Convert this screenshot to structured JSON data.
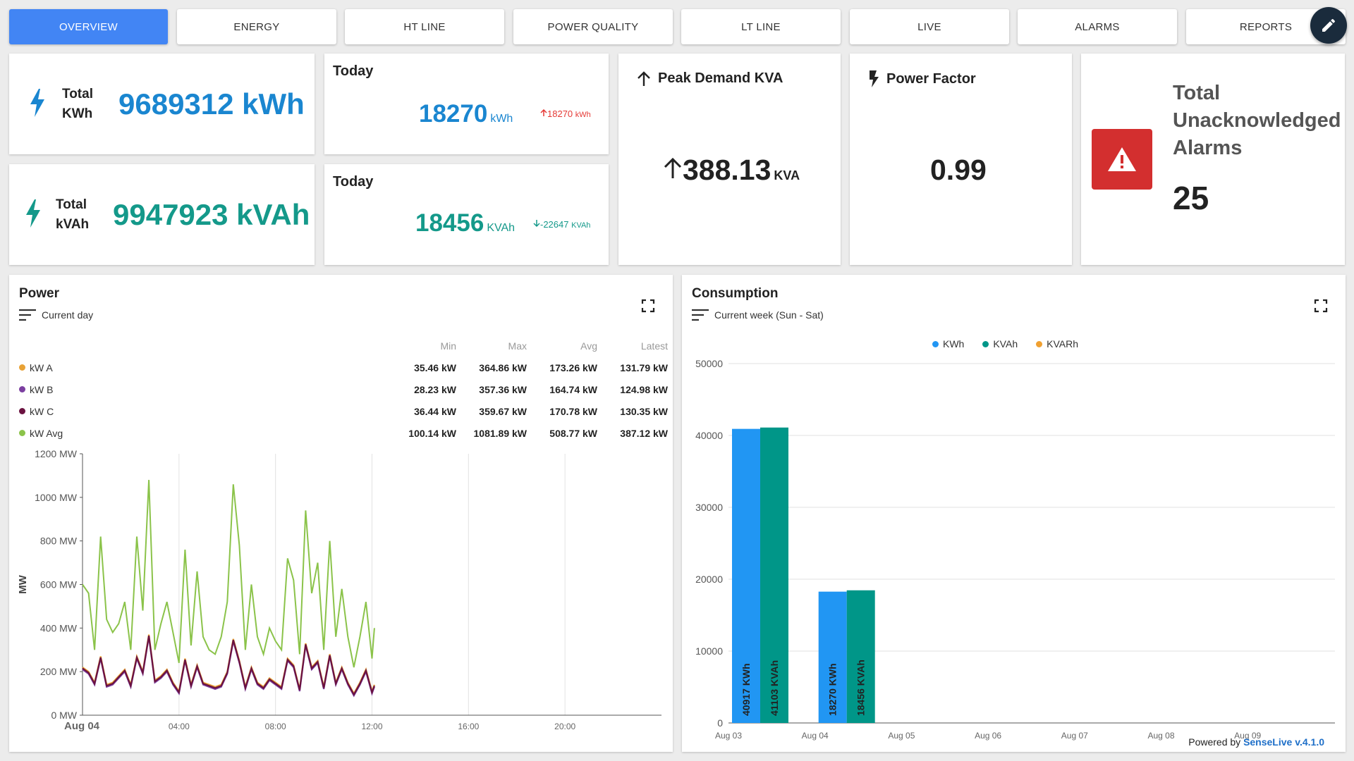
{
  "tabs": [
    {
      "label": "OVERVIEW",
      "active": true
    },
    {
      "label": "ENERGY",
      "active": false
    },
    {
      "label": "HT LINE",
      "active": false
    },
    {
      "label": "POWER QUALITY",
      "active": false
    },
    {
      "label": "LT LINE",
      "active": false
    },
    {
      "label": "LIVE",
      "active": false
    },
    {
      "label": "ALARMS",
      "active": false
    },
    {
      "label": "REPORTS",
      "active": false
    }
  ],
  "totals": {
    "kwh": {
      "label_line1": "Total",
      "label_line2": "KWh",
      "value": "9689312 kWh",
      "color": "#1a86d0"
    },
    "kvah": {
      "label_line1": "Total",
      "label_line2": "kVAh",
      "value": "9947923 kVAh",
      "color": "#14998a"
    }
  },
  "today": {
    "kwh": {
      "label": "Today",
      "value": "18270",
      "unit": "kWh",
      "delta": "18270",
      "delta_unit": "kWh",
      "delta_color": "#e53935"
    },
    "kvah": {
      "label": "Today",
      "value": "18456",
      "unit": "KVAh",
      "delta": "-22647",
      "delta_unit": "KVAh",
      "delta_color": "#14998a"
    }
  },
  "peak_demand": {
    "title": "Peak Demand KVA",
    "value": "388.13",
    "unit": "KVA"
  },
  "power_factor": {
    "title": "Power Factor",
    "value": "0.99"
  },
  "alarms": {
    "title": "Total Unacknowledged Alarms",
    "title_lines": [
      "Total",
      "Unacknowledged",
      "Alarms"
    ],
    "value": "25",
    "color": "#d32f2f"
  },
  "power_chart": {
    "title": "Power",
    "subtitle": "Current day",
    "columns": [
      "Min",
      "Max",
      "Avg",
      "Latest"
    ],
    "series": [
      {
        "name": "kW A",
        "color": "#e8a236",
        "min": "35.46 kW",
        "max": "364.86 kW",
        "avg": "173.26 kW",
        "latest": "131.79 kW"
      },
      {
        "name": "kW B",
        "color": "#7b3fa0",
        "min": "28.23 kW",
        "max": "357.36 kW",
        "avg": "164.74 kW",
        "latest": "124.98 kW"
      },
      {
        "name": "kW C",
        "color": "#6b1240",
        "min": "36.44 kW",
        "max": "359.67 kW",
        "avg": "170.78 kW",
        "latest": "130.35 kW"
      },
      {
        "name": "kW Avg",
        "color": "#8bc34a",
        "min": "100.14 kW",
        "max": "1081.89 kW",
        "avg": "508.77 kW",
        "latest": "387.12 kW"
      }
    ]
  },
  "consumption_chart": {
    "title": "Consumption",
    "subtitle": "Current week (Sun - Sat)",
    "legend": [
      {
        "name": "KWh",
        "color": "#2196f3"
      },
      {
        "name": "KVAh",
        "color": "#009688"
      },
      {
        "name": "KVARh",
        "color": "#f0a030"
      }
    ]
  },
  "chart_data": [
    {
      "type": "line",
      "title": "Power",
      "ylabel": "MW",
      "ylim": [
        0,
        1200
      ],
      "yticks": [
        "0 MW",
        "200 MW",
        "400 MW",
        "600 MW",
        "800 MW",
        "1000 MW",
        "1200 MW"
      ],
      "xticks": [
        "Aug 04",
        "04:00",
        "08:00",
        "12:00",
        "16:00",
        "20:00"
      ],
      "x_hours": [
        0,
        0.25,
        0.5,
        0.75,
        1,
        1.25,
        1.5,
        1.75,
        2,
        2.25,
        2.5,
        2.75,
        3,
        3.25,
        3.5,
        3.75,
        4,
        4.25,
        4.5,
        4.75,
        5,
        5.25,
        5.5,
        5.75,
        6,
        6.25,
        6.5,
        6.75,
        7,
        7.25,
        7.5,
        7.75,
        8,
        8.25,
        8.5,
        8.75,
        9,
        9.25,
        9.5,
        9.75,
        10,
        10.25,
        10.5,
        10.75,
        11,
        11.25,
        11.5,
        11.75,
        12,
        12.1
      ],
      "series": [
        {
          "name": "kW Avg",
          "color": "#8bc34a",
          "values": [
            600,
            560,
            300,
            820,
            440,
            380,
            420,
            520,
            300,
            820,
            480,
            1080,
            300,
            420,
            520,
            380,
            240,
            760,
            320,
            660,
            360,
            300,
            280,
            360,
            520,
            1060,
            780,
            300,
            600,
            360,
            280,
            400,
            340,
            300,
            720,
            620,
            280,
            940,
            560,
            700,
            300,
            800,
            360,
            580,
            360,
            220,
            360,
            520,
            260,
            400
          ]
        },
        {
          "name": "kW A",
          "color": "#e8a236",
          "values": [
            220,
            200,
            150,
            270,
            140,
            150,
            180,
            210,
            140,
            270,
            200,
            370,
            160,
            180,
            210,
            150,
            110,
            260,
            140,
            230,
            150,
            140,
            130,
            140,
            200,
            350,
            250,
            130,
            220,
            150,
            130,
            170,
            150,
            130,
            260,
            230,
            120,
            330,
            220,
            250,
            130,
            280,
            150,
            220,
            150,
            100,
            150,
            210,
            110,
            140
          ]
        },
        {
          "name": "kW B",
          "color": "#7b3fa0",
          "values": [
            210,
            190,
            140,
            260,
            130,
            140,
            170,
            200,
            130,
            260,
            190,
            360,
            150,
            170,
            200,
            140,
            100,
            250,
            130,
            220,
            140,
            130,
            120,
            130,
            190,
            340,
            240,
            120,
            210,
            140,
            120,
            160,
            140,
            120,
            250,
            220,
            110,
            320,
            210,
            240,
            120,
            270,
            140,
            210,
            140,
            90,
            140,
            200,
            100,
            130
          ]
        },
        {
          "name": "kW C",
          "color": "#6b1240",
          "values": [
            215,
            195,
            145,
            265,
            135,
            145,
            175,
            205,
            135,
            265,
            195,
            365,
            155,
            175,
            205,
            145,
            105,
            255,
            135,
            225,
            145,
            135,
            125,
            135,
            195,
            345,
            245,
            125,
            215,
            145,
            125,
            165,
            145,
            125,
            255,
            225,
            115,
            325,
            215,
            245,
            125,
            275,
            145,
            215,
            145,
            95,
            145,
            205,
            105,
            135
          ]
        }
      ]
    },
    {
      "type": "bar",
      "title": "Consumption",
      "categories": [
        "Aug 03",
        "Aug 04",
        "Aug 05",
        "Aug 06",
        "Aug 07",
        "Aug 08",
        "Aug 09"
      ],
      "ylim": [
        0,
        50000
      ],
      "yticks": [
        "0",
        "10000",
        "20000",
        "30000",
        "40000",
        "50000"
      ],
      "series": [
        {
          "name": "KWh",
          "color": "#2196f3",
          "values": [
            40917,
            18270,
            null,
            null,
            null,
            null,
            null
          ],
          "labels": [
            "40917 KWh",
            "18270 KWh"
          ]
        },
        {
          "name": "KVAh",
          "color": "#009688",
          "values": [
            41103,
            18456,
            null,
            null,
            null,
            null,
            null
          ],
          "labels": [
            "41103 KVAh",
            "18456 KVAh"
          ]
        },
        {
          "name": "KVARh",
          "color": "#f0a030",
          "values": [
            null,
            null,
            null,
            null,
            null,
            null,
            null
          ]
        }
      ]
    }
  ],
  "footer": {
    "prefix": "Powered by",
    "brand": "SenseLive v.4.1.0"
  }
}
